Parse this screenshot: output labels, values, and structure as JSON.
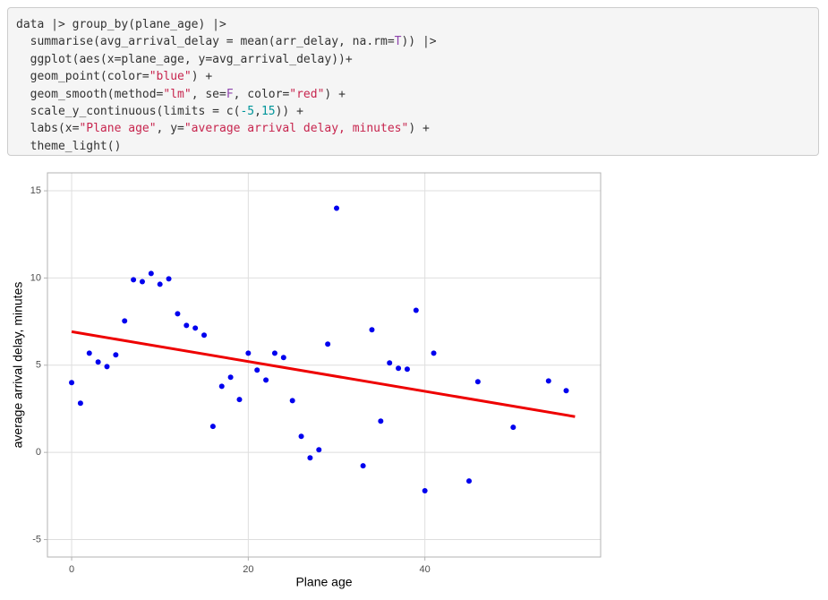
{
  "code": {
    "lines": [
      "data |> group_by(plane_age) |>",
      "  summarise(avg_arrival_delay = mean(arr_delay, na.rm=T)) |>",
      "  ggplot(aes(x=plane_age, y=avg_arrival_delay))+",
      "  geom_point(color=\"blue\") +",
      "  geom_smooth(method=\"lm\", se=F, color=\"red\") +",
      "  scale_y_continuous(limits = c(-5,15)) +",
      "  labs(x=\"Plane age\", y=\"average arrival delay, minutes\") +",
      "  theme_light()"
    ]
  },
  "chart_data": {
    "type": "scatter",
    "x_label": "Plane age",
    "y_label": "average arrival delay, minutes",
    "points": {
      "color": "#0000ee",
      "x": [
        0,
        1,
        2,
        3,
        4,
        5,
        6,
        7,
        8,
        9,
        10,
        11,
        12,
        13,
        14,
        15,
        16,
        17,
        18,
        19,
        20,
        21,
        22,
        23,
        24,
        25,
        26,
        27,
        28,
        29,
        30,
        33,
        34,
        35,
        36,
        37,
        38,
        39,
        40,
        41,
        45,
        46,
        50,
        54,
        56
      ],
      "y": [
        4.0,
        2.82,
        5.69,
        5.18,
        4.92,
        5.59,
        7.54,
        9.9,
        9.79,
        10.26,
        9.64,
        9.95,
        7.95,
        7.28,
        7.13,
        6.72,
        1.49,
        3.79,
        4.31,
        3.03,
        5.69,
        4.72,
        4.15,
        5.69,
        5.44,
        2.97,
        0.92,
        -0.31,
        0.15,
        6.21,
        14.0,
        -0.77,
        7.03,
        1.79,
        5.13,
        4.82,
        4.77,
        8.15,
        -2.2,
        5.69,
        -1.64,
        4.05,
        1.44,
        4.1,
        3.54
      ]
    },
    "fit_line": {
      "color": "#ee0000",
      "x": [
        0,
        57
      ],
      "y": [
        6.92,
        2.05
      ]
    },
    "xlim": [
      -2.74,
      59.9
    ],
    "ylim": [
      -6.0,
      16.03
    ],
    "xticks": [
      0,
      20,
      40
    ],
    "yticks": [
      -5,
      0,
      5,
      10,
      15
    ],
    "grid": true
  }
}
